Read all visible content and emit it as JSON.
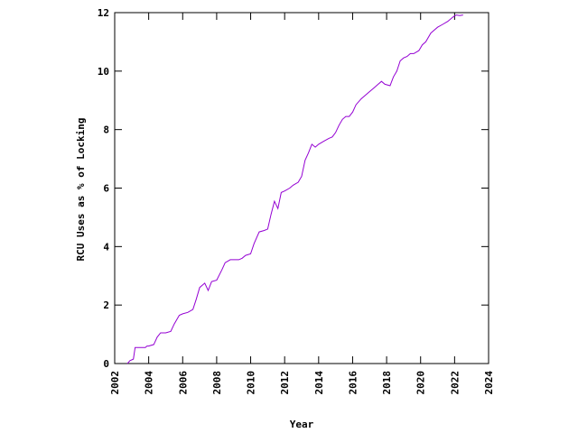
{
  "chart_data": {
    "type": "line",
    "title": "",
    "xlabel": "Year",
    "ylabel": "RCU Uses as % of Locking",
    "xlim": [
      2002,
      2024
    ],
    "ylim": [
      0,
      12
    ],
    "xticks": [
      2002,
      2004,
      2006,
      2008,
      2010,
      2012,
      2014,
      2016,
      2018,
      2020,
      2022,
      2024
    ],
    "xtick_labels": [
      "2002",
      "2004",
      "2006",
      "2008",
      "2010",
      "2012",
      "2014",
      "2016",
      "2018",
      "2020",
      "2022",
      "2024"
    ],
    "yticks": [
      0,
      2,
      4,
      6,
      8,
      10,
      12
    ],
    "ytick_labels": [
      "0",
      "2",
      "4",
      "6",
      "8",
      "10",
      "12"
    ],
    "grid": false,
    "legend": "none",
    "series": [
      {
        "color": "#9400d3",
        "points": [
          [
            2002.75,
            0.0
          ],
          [
            2002.9,
            0.1
          ],
          [
            2003.1,
            0.15
          ],
          [
            2003.2,
            0.55
          ],
          [
            2003.5,
            0.55
          ],
          [
            2003.8,
            0.55
          ],
          [
            2003.9,
            0.6
          ],
          [
            2004.0,
            0.6
          ],
          [
            2004.3,
            0.65
          ],
          [
            2004.5,
            0.9
          ],
          [
            2004.7,
            1.05
          ],
          [
            2005.0,
            1.05
          ],
          [
            2005.3,
            1.1
          ],
          [
            2005.5,
            1.35
          ],
          [
            2005.8,
            1.65
          ],
          [
            2006.0,
            1.7
          ],
          [
            2006.3,
            1.75
          ],
          [
            2006.6,
            1.85
          ],
          [
            2006.8,
            2.2
          ],
          [
            2007.0,
            2.6
          ],
          [
            2007.3,
            2.75
          ],
          [
            2007.5,
            2.5
          ],
          [
            2007.7,
            2.8
          ],
          [
            2008.0,
            2.85
          ],
          [
            2008.3,
            3.2
          ],
          [
            2008.5,
            3.45
          ],
          [
            2008.8,
            3.55
          ],
          [
            2009.0,
            3.55
          ],
          [
            2009.3,
            3.55
          ],
          [
            2009.5,
            3.6
          ],
          [
            2009.7,
            3.7
          ],
          [
            2010.0,
            3.75
          ],
          [
            2010.2,
            4.1
          ],
          [
            2010.5,
            4.5
          ],
          [
            2010.8,
            4.55
          ],
          [
            2011.0,
            4.6
          ],
          [
            2011.2,
            5.1
          ],
          [
            2011.4,
            5.55
          ],
          [
            2011.6,
            5.3
          ],
          [
            2011.8,
            5.85
          ],
          [
            2012.0,
            5.9
          ],
          [
            2012.3,
            6.0
          ],
          [
            2012.5,
            6.1
          ],
          [
            2012.8,
            6.2
          ],
          [
            2013.0,
            6.4
          ],
          [
            2013.2,
            6.95
          ],
          [
            2013.4,
            7.2
          ],
          [
            2013.6,
            7.5
          ],
          [
            2013.8,
            7.4
          ],
          [
            2014.0,
            7.5
          ],
          [
            2014.3,
            7.6
          ],
          [
            2014.6,
            7.7
          ],
          [
            2014.8,
            7.75
          ],
          [
            2015.0,
            7.9
          ],
          [
            2015.2,
            8.15
          ],
          [
            2015.4,
            8.35
          ],
          [
            2015.6,
            8.45
          ],
          [
            2015.8,
            8.45
          ],
          [
            2016.0,
            8.6
          ],
          [
            2016.2,
            8.85
          ],
          [
            2016.5,
            9.05
          ],
          [
            2016.8,
            9.2
          ],
          [
            2017.0,
            9.3
          ],
          [
            2017.3,
            9.45
          ],
          [
            2017.5,
            9.55
          ],
          [
            2017.7,
            9.65
          ],
          [
            2017.9,
            9.55
          ],
          [
            2018.2,
            9.5
          ],
          [
            2018.4,
            9.8
          ],
          [
            2018.6,
            10.0
          ],
          [
            2018.8,
            10.35
          ],
          [
            2019.0,
            10.45
          ],
          [
            2019.2,
            10.5
          ],
          [
            2019.4,
            10.6
          ],
          [
            2019.6,
            10.6
          ],
          [
            2019.9,
            10.7
          ],
          [
            2020.1,
            10.9
          ],
          [
            2020.3,
            11.0
          ],
          [
            2020.6,
            11.3
          ],
          [
            2020.8,
            11.4
          ],
          [
            2021.0,
            11.5
          ],
          [
            2021.3,
            11.6
          ],
          [
            2021.6,
            11.7
          ],
          [
            2021.9,
            11.85
          ],
          [
            2022.1,
            11.92
          ],
          [
            2022.3,
            11.9
          ],
          [
            2022.5,
            11.92
          ]
        ]
      }
    ]
  }
}
